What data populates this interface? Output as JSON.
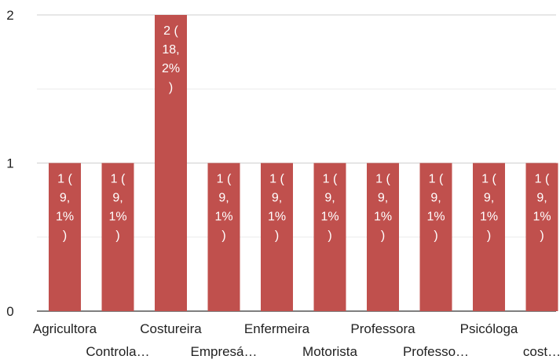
{
  "chart_data": {
    "type": "bar",
    "title": "",
    "xlabel": "",
    "ylabel": "",
    "ylim": [
      0,
      2
    ],
    "yticks": [
      "0",
      "1",
      "2"
    ],
    "grid": true,
    "bar_color": "#c0504d",
    "categories": [
      "Agricultora",
      "Controla…",
      "Costureira",
      "Empresá…",
      "Enfermeira",
      "Motorista",
      "Professora",
      "Professo…",
      "Psicóloga",
      "cost…"
    ],
    "values": [
      1,
      1,
      2,
      1,
      1,
      1,
      1,
      1,
      1,
      1
    ],
    "data_labels": [
      [
        "1 (",
        "9,",
        "1%",
        ")"
      ],
      [
        "1 (",
        "9,",
        "1%",
        ")"
      ],
      [
        "2 (",
        "18,",
        "2%",
        ")"
      ],
      [
        "1 (",
        "9,",
        "1%",
        ")"
      ],
      [
        "1 (",
        "9,",
        "1%",
        ")"
      ],
      [
        "1 (",
        "9,",
        "1%",
        ")"
      ],
      [
        "1 (",
        "9,",
        "1%",
        ")"
      ],
      [
        "1 (",
        "9,",
        "1%",
        ")"
      ],
      [
        "1 (",
        "9,",
        "1%",
        ")"
      ],
      [
        "1 (",
        "9,",
        "1%",
        ")"
      ]
    ]
  }
}
